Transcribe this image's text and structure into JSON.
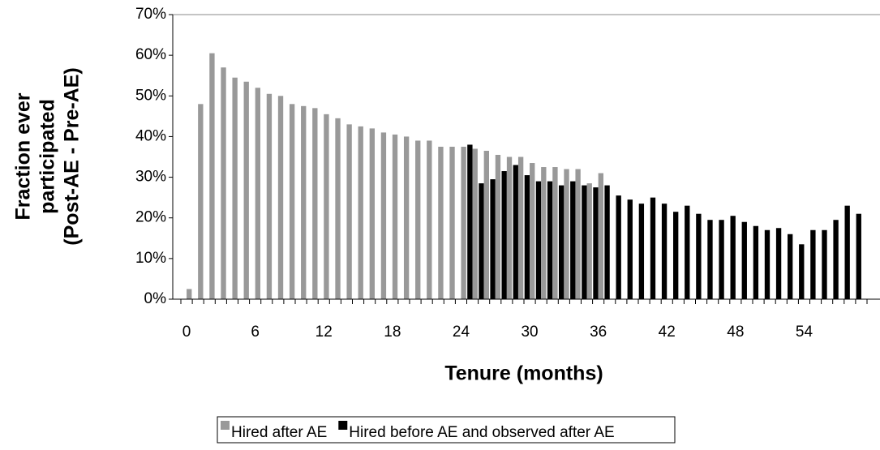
{
  "chart_data": {
    "type": "bar",
    "y_label": [
      "Fraction ever",
      "participated",
      "(Post-AE - Pre-AE)"
    ],
    "x_label": "Tenure (months)",
    "categories": [
      "0",
      null,
      null,
      null,
      null,
      null,
      "6",
      null,
      null,
      null,
      null,
      null,
      "12",
      null,
      null,
      null,
      null,
      null,
      "18",
      null,
      null,
      null,
      null,
      null,
      "24",
      null,
      null,
      null,
      null,
      null,
      "30",
      null,
      null,
      null,
      null,
      null,
      "36",
      null,
      null,
      null,
      null,
      null,
      "42",
      null,
      null,
      null,
      null,
      null,
      "48",
      null,
      null,
      null,
      null,
      null,
      "54",
      null,
      null,
      null,
      null,
      null,
      null
    ],
    "series": [
      {
        "name": "Hired before AE and observed after AE",
        "color": "#000000",
        "values": [
          null,
          null,
          null,
          null,
          null,
          null,
          null,
          null,
          null,
          null,
          null,
          null,
          null,
          null,
          null,
          null,
          null,
          null,
          null,
          null,
          null,
          null,
          null,
          null,
          null,
          38,
          28.5,
          29.5,
          31.5,
          33,
          30.5,
          29,
          29,
          28,
          29,
          28,
          27.5,
          28,
          25.5,
          24.5,
          23.5,
          25,
          23.5,
          21.5,
          23,
          21,
          19.5,
          19.5,
          20.5,
          19,
          18,
          17,
          17.5,
          16,
          13.5,
          17,
          17,
          19.5,
          23,
          21,
          null
        ]
      },
      {
        "name": "Hired after AE",
        "color": "#999999",
        "values": [
          2.5,
          48,
          60.5,
          57,
          54.5,
          53.5,
          52,
          50.5,
          50,
          48,
          47.5,
          47,
          45.5,
          44.5,
          43,
          42.5,
          42,
          41,
          40.5,
          40,
          39,
          39,
          37.5,
          37.5,
          37.5,
          37,
          36.5,
          35.5,
          35,
          35,
          33.5,
          32.5,
          32.5,
          32,
          32,
          28.5,
          31,
          null,
          null,
          null,
          null,
          null,
          null,
          null,
          null,
          null,
          null,
          null,
          null,
          null,
          null,
          null,
          null,
          null,
          null,
          null,
          null,
          null,
          null,
          null,
          null
        ]
      }
    ],
    "legend_order": [
      1,
      0
    ],
    "ylim": [
      0,
      70
    ],
    "yticks": [
      {
        "value": 0,
        "label": "0%"
      },
      {
        "value": 10,
        "label": "10%"
      },
      {
        "value": 20,
        "label": "20%"
      },
      {
        "value": 30,
        "label": "30%"
      },
      {
        "value": 40,
        "label": "40%"
      },
      {
        "value": 50,
        "label": "50%"
      },
      {
        "value": 60,
        "label": "60%"
      },
      {
        "value": 70,
        "label": "70%"
      }
    ]
  }
}
